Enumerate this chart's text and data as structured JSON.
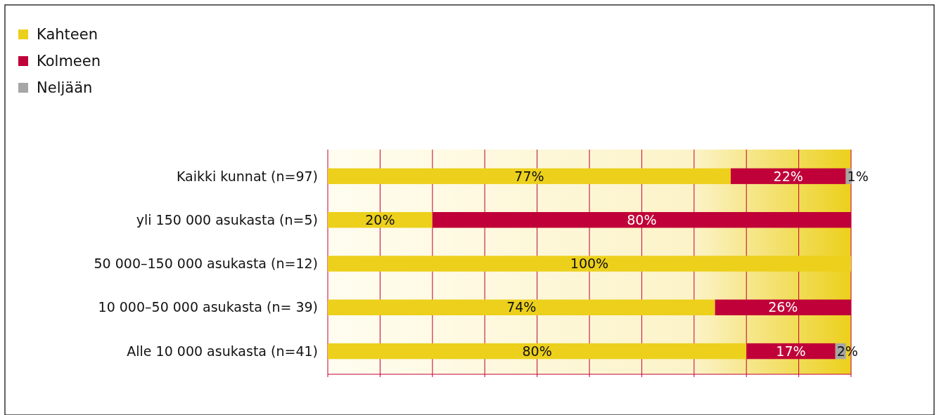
{
  "chart_data": {
    "type": "bar",
    "orientation": "horizontal",
    "stacked": true,
    "categories": [
      "Kaikki kunnat (n=97)",
      "yli 150 000 asukasta (n=5)",
      "50 000–150 000 asukasta (n=12)",
      "10 000–50 000 asukasta (n= 39)",
      "Alle 10 000 asukasta (n=41)"
    ],
    "series": [
      {
        "name": "Kahteen",
        "color": "#ecd01c",
        "values": [
          77,
          20,
          100,
          74,
          80
        ],
        "value_labels": [
          "77%",
          "20%",
          "100%",
          "74%",
          "80%"
        ]
      },
      {
        "name": "Kolmeen",
        "color": "#c00038",
        "values": [
          22,
          80,
          0,
          26,
          17
        ],
        "value_labels": [
          "22%",
          "80%",
          null,
          "26%",
          "17%"
        ]
      },
      {
        "name": "Neljään",
        "color": "#a6a6a6",
        "values": [
          1,
          0,
          0,
          0,
          2
        ],
        "value_labels": [
          "1%",
          null,
          null,
          null,
          "2%"
        ]
      }
    ],
    "xlim": [
      0,
      100
    ],
    "xticks": [
      {
        "value": 0,
        "label": null
      },
      {
        "value": 10,
        "label": null
      },
      {
        "value": 20,
        "label": null
      },
      {
        "value": 30,
        "label": null
      },
      {
        "value": 40,
        "label": null
      },
      {
        "value": 50,
        "label": null
      },
      {
        "value": 60,
        "label": null
      },
      {
        "value": 70,
        "label": null
      },
      {
        "value": 80,
        "label": null
      },
      {
        "value": 90,
        "label": null
      },
      {
        "value": 100,
        "label": null
      }
    ],
    "grid": "x",
    "legend": "top left",
    "tick_labels": "y"
  }
}
